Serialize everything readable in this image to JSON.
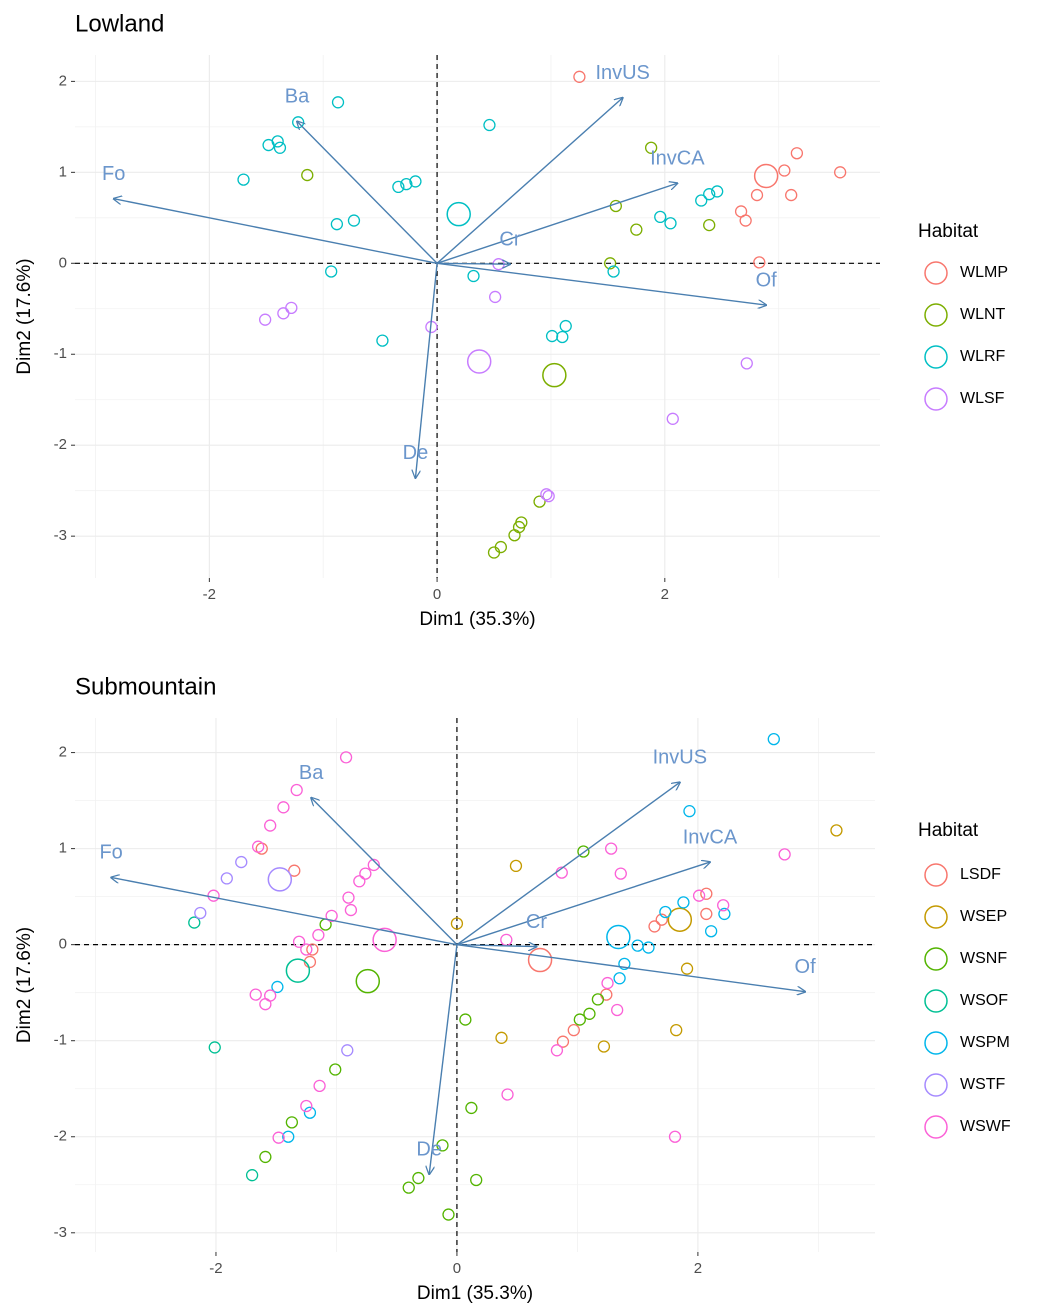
{
  "chart_data": [
    {
      "type": "biplot",
      "title": "Lowland",
      "xlabel": "Dim1 (35.3%)",
      "ylabel": "Dim2 (17.6%)",
      "legend_title": "Habitat",
      "xlim": [
        -3.18,
        3.89
      ],
      "ylim": [
        -3.46,
        2.29
      ],
      "xticks": [
        -2,
        0,
        2
      ],
      "yticks": [
        -3,
        -2,
        -1,
        0,
        1,
        2
      ],
      "xminor": [
        -3,
        -1,
        1,
        3
      ],
      "yminor": [
        -2.5,
        -1.5,
        -0.5,
        0.5,
        1.5
      ],
      "arrow_color": "#4a7fb0",
      "series": [
        {
          "name": "WLMP",
          "color": "#F8766D",
          "centroid": [
            2.89,
            0.96
          ],
          "x": [
            1.25,
            3.16,
            3.05,
            2.81,
            2.67,
            2.71,
            3.11,
            3.54,
            2.83
          ],
          "y": [
            2.05,
            1.21,
            1.02,
            0.75,
            0.57,
            0.47,
            0.75,
            1.0,
            0.01
          ]
        },
        {
          "name": "WLNT",
          "color": "#7CAE00",
          "centroid": [
            1.03,
            -1.23
          ],
          "x": [
            1.88,
            -1.14,
            1.57,
            1.75,
            2.39,
            1.52,
            0.9,
            0.74,
            0.72,
            0.68,
            0.56,
            0.5
          ],
          "y": [
            1.27,
            0.97,
            0.63,
            0.37,
            0.42,
            0.0,
            -2.62,
            -2.85,
            -2.9,
            -2.99,
            -3.12,
            -3.18
          ]
        },
        {
          "name": "WLRF",
          "color": "#00BFC4",
          "centroid": [
            0.19,
            0.54
          ],
          "x": [
            -0.87,
            -1.22,
            -1.48,
            -1.4,
            -1.38,
            -1.7,
            0.46,
            -0.34,
            -0.27,
            -0.19,
            -0.73,
            -0.88,
            -0.93,
            0.32,
            -0.48,
            1.55,
            1.01,
            1.1,
            1.13,
            1.96,
            2.05,
            2.32,
            2.39,
            2.46
          ],
          "y": [
            1.77,
            1.55,
            1.3,
            1.34,
            1.27,
            0.92,
            1.52,
            0.84,
            0.87,
            0.9,
            0.47,
            0.43,
            -0.09,
            -0.14,
            -0.85,
            -0.09,
            -0.8,
            -0.81,
            -0.69,
            0.51,
            0.44,
            0.69,
            0.76,
            0.79
          ]
        },
        {
          "name": "WLSF",
          "color": "#C77CFF",
          "centroid": [
            0.37,
            -1.08
          ],
          "x": [
            -1.51,
            -1.35,
            -1.28,
            -0.05,
            0.51,
            0.54,
            2.07,
            2.72,
            0.98,
            0.96
          ],
          "y": [
            -0.62,
            -0.55,
            -0.49,
            -0.7,
            -0.37,
            -0.01,
            -1.71,
            -1.1,
            -2.56,
            -2.54
          ]
        }
      ],
      "arrows": [
        {
          "name": "Fo",
          "x": -2.84,
          "y": 0.71
        },
        {
          "name": "Ba",
          "x": -1.23,
          "y": 1.56
        },
        {
          "name": "InvUS",
          "x": 1.63,
          "y": 1.82
        },
        {
          "name": "InvCA",
          "x": 2.11,
          "y": 0.88
        },
        {
          "name": "Cr",
          "x": 0.64,
          "y": -0.01
        },
        {
          "name": "Of",
          "x": 2.89,
          "y": -0.46
        },
        {
          "name": "De",
          "x": -0.19,
          "y": -2.36
        }
      ]
    },
    {
      "type": "biplot",
      "title": "Submountain",
      "xlabel": "Dim1 (35.3%)",
      "ylabel": "Dim2 (17.6%)",
      "legend_title": "Habitat",
      "xlim": [
        -3.17,
        3.47
      ],
      "ylim": [
        -3.2,
        2.36
      ],
      "xticks": [
        -2,
        0,
        2
      ],
      "yticks": [
        -3,
        -2,
        -1,
        0,
        1,
        2
      ],
      "xminor": [
        -3,
        -1,
        1,
        3
      ],
      "yminor": [
        -2.5,
        -1.5,
        -0.5,
        0.5,
        1.5
      ],
      "arrow_color": "#4a7fb0",
      "series": [
        {
          "name": "LSDF",
          "color": "#F8766D",
          "centroid": [
            0.69,
            -0.16
          ],
          "x": [
            -1.35,
            -1.62,
            -1.2,
            -1.22,
            1.64,
            1.7,
            2.07,
            2.07,
            1.24,
            0.97,
            0.88
          ],
          "y": [
            0.77,
            1.0,
            -0.05,
            -0.18,
            0.19,
            0.26,
            0.32,
            0.53,
            -0.52,
            -0.89,
            -1.01
          ]
        },
        {
          "name": "WSEP",
          "color": "#C49A00",
          "centroid": [
            1.85,
            0.26
          ],
          "x": [
            3.15,
            0.49,
            0.0,
            1.91,
            1.82,
            1.22,
            0.37
          ],
          "y": [
            1.19,
            0.82,
            0.22,
            -0.25,
            -0.89,
            -1.06,
            -0.97
          ]
        },
        {
          "name": "WSNF",
          "color": "#53B400",
          "centroid": [
            -0.74,
            -0.38
          ],
          "x": [
            1.05,
            -1.09,
            0.07,
            1.02,
            1.1,
            1.17,
            -1.01,
            -1.37,
            -1.59,
            0.12,
            -0.12,
            -0.32,
            -0.4,
            0.16,
            -0.07
          ],
          "y": [
            0.97,
            0.21,
            -0.78,
            -0.78,
            -0.72,
            -0.57,
            -1.3,
            -1.85,
            -2.21,
            -1.7,
            -2.09,
            -2.43,
            -2.53,
            -2.45,
            -2.81
          ]
        },
        {
          "name": "WSOF",
          "color": "#00C094",
          "centroid": [
            -1.32,
            -0.27
          ],
          "x": [
            -2.18,
            -2.01,
            -1.7
          ],
          "y": [
            0.23,
            -1.07,
            -2.4
          ]
        },
        {
          "name": "WSPM",
          "color": "#00B6EB",
          "centroid": [
            1.34,
            0.08
          ],
          "x": [
            2.63,
            1.93,
            1.88,
            1.73,
            2.11,
            2.22,
            1.5,
            1.59,
            1.39,
            1.35,
            -1.49,
            -1.22,
            -1.4
          ],
          "y": [
            2.14,
            1.39,
            0.44,
            0.34,
            0.14,
            0.32,
            -0.01,
            -0.03,
            -0.2,
            -0.35,
            -0.44,
            -1.75,
            -2.0
          ]
        },
        {
          "name": "WSTF",
          "color": "#A58AFF",
          "centroid": [
            -1.47,
            0.68
          ],
          "x": [
            -2.13,
            -1.91,
            -1.79,
            -0.91
          ],
          "y": [
            0.33,
            0.69,
            0.86,
            -1.1
          ]
        },
        {
          "name": "WSWF",
          "color": "#FB61D7",
          "centroid": [
            -0.6,
            0.05
          ],
          "x": [
            -0.92,
            -1.33,
            -1.44,
            -1.55,
            -1.65,
            -2.02,
            -0.69,
            -0.76,
            -0.81,
            -0.9,
            -0.88,
            -1.04,
            -1.15,
            -1.31,
            -1.25,
            -1.67,
            -1.59,
            -1.55,
            -1.14,
            -1.25,
            -1.48,
            0.41,
            0.87,
            1.28,
            1.36,
            2.01,
            2.21,
            2.72,
            1.25,
            1.33,
            0.83,
            0.42,
            1.81
          ],
          "y": [
            1.95,
            1.61,
            1.43,
            1.24,
            1.02,
            0.51,
            0.83,
            0.74,
            0.66,
            0.49,
            0.36,
            0.3,
            0.1,
            0.03,
            -0.05,
            -0.52,
            -0.62,
            -0.53,
            -1.47,
            -1.68,
            -2.01,
            0.05,
            0.75,
            1.0,
            0.74,
            0.51,
            0.41,
            0.94,
            -0.4,
            -0.68,
            -1.1,
            -1.56,
            -2.0
          ]
        }
      ],
      "arrows": [
        {
          "name": "Fo",
          "x": -2.87,
          "y": 0.7
        },
        {
          "name": "Ba",
          "x": -1.21,
          "y": 1.53
        },
        {
          "name": "InvUS",
          "x": 1.85,
          "y": 1.69
        },
        {
          "name": "InvCA",
          "x": 2.1,
          "y": 0.86
        },
        {
          "name": "Cr",
          "x": 0.66,
          "y": -0.02
        },
        {
          "name": "Of",
          "x": 2.89,
          "y": -0.49
        },
        {
          "name": "De",
          "x": -0.23,
          "y": -2.39
        }
      ]
    }
  ]
}
